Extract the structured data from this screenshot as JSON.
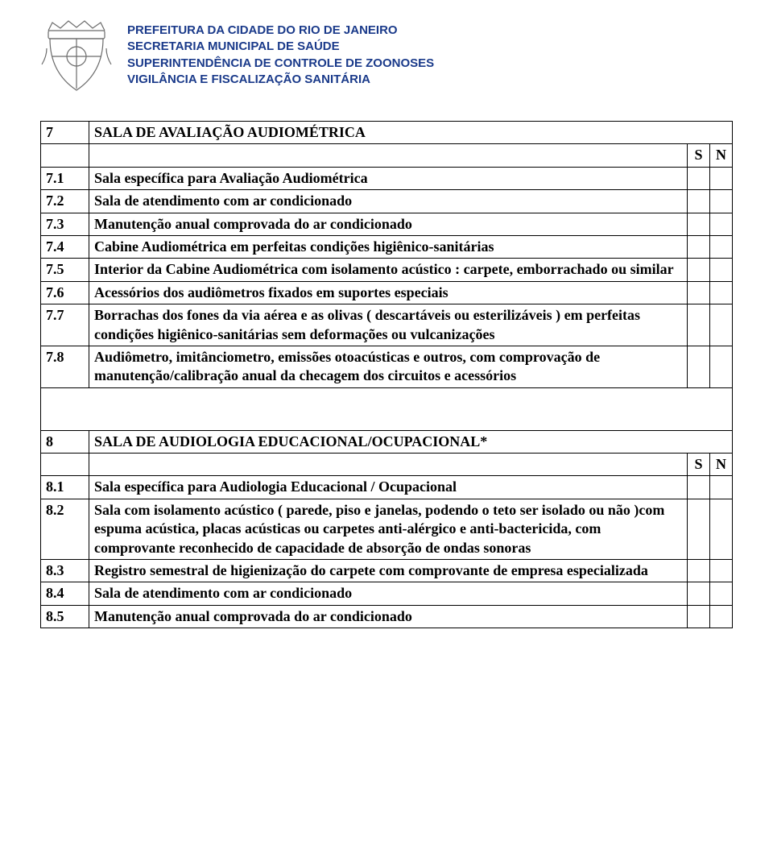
{
  "header": {
    "line1": "PREFEITURA DA CIDADE DO RIO DE JANEIRO",
    "line2": "SECRETARIA MUNICIPAL DE SAÚDE",
    "line3": "SUPERINTENDÊNCIA DE CONTROLE DE ZOONOSES",
    "line4": "VIGILÂNCIA E FISCALIZAÇÃO SANITÁRIA",
    "text_color": "#1a3a8a",
    "crest_stroke": "#6b6b6b"
  },
  "columns": {
    "s": "S",
    "n": "N"
  },
  "section7": {
    "num": "7",
    "title": "SALA DE AVALIAÇÃO AUDIOMÉTRICA",
    "rows": [
      {
        "num": "7.1",
        "desc": "Sala específica para Avaliação Audiométrica"
      },
      {
        "num": "7.2",
        "desc": "Sala de atendimento com ar condicionado"
      },
      {
        "num": "7.3",
        "desc": "Manutenção anual comprovada do ar condicionado"
      },
      {
        "num": "7.4",
        "desc": "Cabine Audiométrica em perfeitas condições higiênico-sanitárias"
      },
      {
        "num": "7.5",
        "desc": "Interior da Cabine Audiométrica com isolamento acústico : carpete, emborrachado ou similar"
      },
      {
        "num": "7.6",
        "desc": "Acessórios dos audiômetros fixados em suportes especiais"
      },
      {
        "num": "7.7",
        "desc": "Borrachas dos fones da via aérea e as olivas ( descartáveis ou esterilizáveis ) em perfeitas condições higiênico-sanitárias sem deformações ou vulcanizações"
      },
      {
        "num": "7.8",
        "desc": "Audiômetro, imitânciometro, emissões otoacústicas e outros, com comprovação de manutenção/calibração anual da checagem dos circuitos e acessórios"
      }
    ]
  },
  "section8": {
    "num": "8",
    "title": "SALA DE AUDIOLOGIA EDUCACIONAL/OCUPACIONAL*",
    "rows": [
      {
        "num": "8.1",
        "desc": "Sala específica para Audiologia Educacional / Ocupacional"
      },
      {
        "num": "8.2",
        "desc": "Sala com isolamento acústico ( parede, piso e janelas,  podendo o teto ser isolado ou não )com espuma acústica, placas acústicas ou carpetes anti-alérgico e anti-bactericida, com comprovante reconhecido de capacidade de absorção de ondas sonoras"
      },
      {
        "num": "8.3",
        "desc": "Registro semestral de higienização do carpete com comprovante de empresa especializada"
      },
      {
        "num": "8.4",
        "desc": "Sala de atendimento com ar condicionado"
      },
      {
        "num": "8.5",
        "desc": "Manutenção anual comprovada do ar condicionado"
      }
    ]
  }
}
